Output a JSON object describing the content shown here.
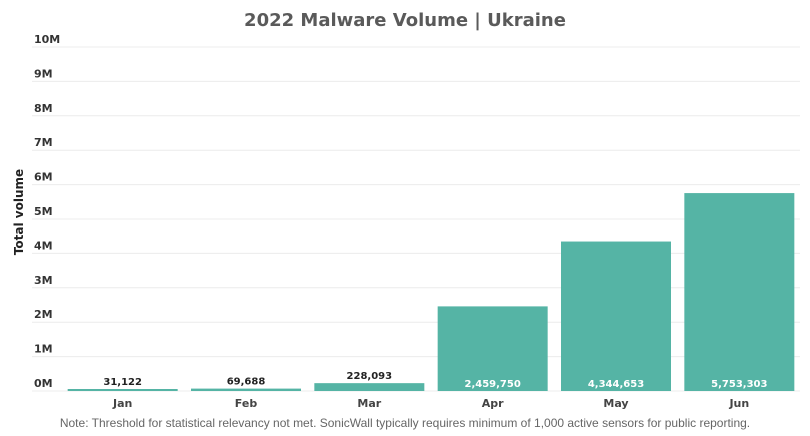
{
  "chart_data": {
    "type": "bar",
    "title": "2022 Malware Volume | Ukraine",
    "ylabel": "Total volume",
    "xlabel": "",
    "categories": [
      "Jan",
      "Feb",
      "Mar",
      "Apr",
      "May",
      "Jun"
    ],
    "values": [
      31122,
      69688,
      228093,
      2459750,
      4344653,
      5753303
    ],
    "data_labels": [
      "31,122",
      "69,688",
      "228,093",
      "2,459,750",
      "4,344,653",
      "5,753,303"
    ],
    "ylim": [
      0,
      10000000
    ],
    "yticks": [
      0,
      1000000,
      2000000,
      3000000,
      4000000,
      5000000,
      6000000,
      7000000,
      8000000,
      9000000,
      10000000
    ],
    "ytick_labels": [
      "0M",
      "1M",
      "2M",
      "3M",
      "4M",
      "5M",
      "6M",
      "7M",
      "8M",
      "9M",
      "10M"
    ],
    "grid": true,
    "bar_color": "#55b4a5"
  },
  "note": "Note: Threshold for statistical relevancy not met. SonicWall typically requires minimum of 1,000 active sensors for public reporting."
}
